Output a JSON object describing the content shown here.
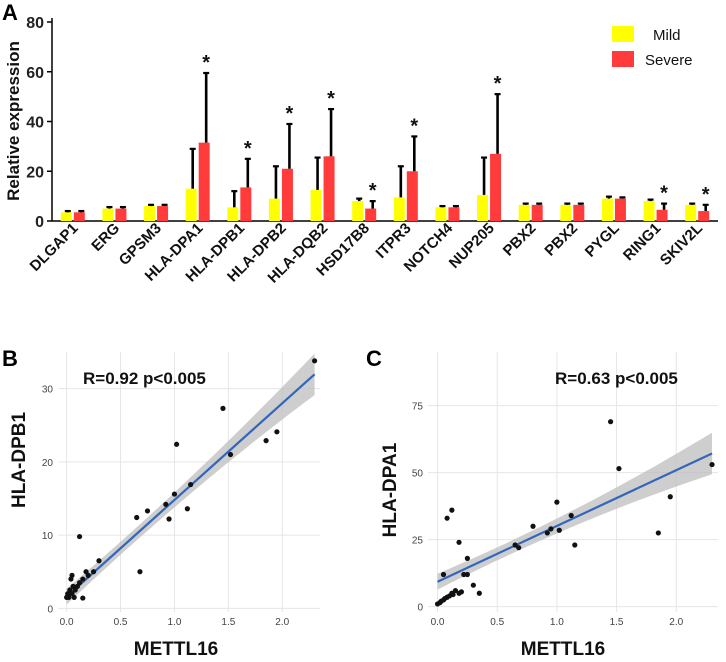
{
  "colors": {
    "mild": "#ffff00",
    "severe": "#ff3b3b",
    "error": "#000000",
    "fit_line": "#3366bb",
    "band": "#bdbdbd",
    "point": "#111111",
    "grid": "#e6e6e6"
  },
  "chart_data": [
    {
      "panel": "A",
      "type": "bar",
      "title": "",
      "ylabel": "Relative expression",
      "xlabel": "",
      "ylim": [
        0,
        80
      ],
      "yticks": [
        0,
        20,
        40,
        60,
        80
      ],
      "legend": {
        "position": "top-right",
        "entries": [
          "Mild",
          "Severe"
        ]
      },
      "categories": [
        "DLGAP1",
        "ERG",
        "GPSM3",
        "HLA-DPA1",
        "HLA-DPB1",
        "HLA-DPB2",
        "HLA-DQB2",
        "HSD17B8",
        "ITPR3",
        "NOTCH4",
        "NUP205",
        "PBX2",
        "PBX2",
        "PYGL",
        "RING1",
        "SKIV2L"
      ],
      "series": [
        {
          "name": "Mild",
          "values": [
            3.5,
            5,
            6,
            13,
            5.5,
            9,
            12.5,
            8,
            9.5,
            5.5,
            10.5,
            6.5,
            6.5,
            9,
            8,
            6.5
          ],
          "errors": [
            0.5,
            0.6,
            0.5,
            16,
            6.5,
            13,
            13,
            1,
            12.5,
            0.5,
            15,
            0.5,
            0.5,
            0.8,
            0.6,
            0.5
          ]
        },
        {
          "name": "Severe",
          "values": [
            3.5,
            5,
            6,
            31.5,
            13.5,
            21,
            26,
            5,
            20,
            5.5,
            27,
            6.5,
            6.5,
            9,
            4.5,
            4
          ],
          "errors": [
            0.5,
            0.6,
            0.5,
            28,
            11.5,
            18,
            19,
            3,
            14,
            0.5,
            24,
            0.5,
            0.5,
            0.5,
            2.5,
            2.5
          ]
        }
      ],
      "significant": [
        false,
        false,
        false,
        true,
        true,
        true,
        true,
        true,
        true,
        false,
        true,
        false,
        false,
        false,
        true,
        true
      ],
      "significance_label": "*"
    },
    {
      "panel": "B",
      "type": "scatter",
      "xlabel": "METTL16",
      "ylabel": "HLA-DPB1",
      "xlim": [
        -0.08,
        2.35
      ],
      "ylim": [
        -0.5,
        35
      ],
      "xticks": [
        0.0,
        0.5,
        1.0,
        1.5,
        2.0
      ],
      "xtick_labels": [
        "0.0",
        "0.5",
        "1.0",
        "1.5",
        "2.0"
      ],
      "yticks": [
        0,
        10,
        20,
        30
      ],
      "yticks_labels": [
        "0",
        "10",
        "20",
        "30"
      ],
      "annotation": "R=0.92 p<0.005",
      "fit": {
        "slope": 13.2,
        "intercept": 1.6,
        "x_range": [
          0.0,
          2.3
        ],
        "band_start": 1.2,
        "band_end": 2.2
      },
      "x": [
        0.0,
        0.01,
        0.02,
        0.03,
        0.04,
        0.05,
        0.06,
        0.07,
        0.08,
        0.1,
        0.12,
        0.15,
        0.18,
        0.2,
        0.25,
        0.3,
        0.12,
        0.15,
        0.05,
        0.65,
        0.68,
        0.75,
        0.92,
        0.95,
        1.0,
        1.02,
        1.12,
        1.15,
        1.45,
        1.52,
        1.85,
        1.95,
        2.3
      ],
      "y": [
        1.5,
        2.0,
        1.5,
        2.5,
        4.0,
        2.0,
        3.0,
        1.5,
        2.5,
        3.0,
        3.5,
        4.0,
        5.0,
        4.5,
        5.0,
        6.5,
        9.8,
        1.4,
        4.5,
        12.4,
        5.0,
        13.3,
        14.2,
        12.2,
        15.6,
        22.4,
        13.6,
        16.9,
        27.3,
        21.0,
        22.9,
        24.1,
        33.8
      ]
    },
    {
      "panel": "C",
      "type": "scatter",
      "xlabel": "METTL16",
      "ylabel": "HLA-DPA1",
      "xlim": [
        -0.08,
        2.35
      ],
      "ylim": [
        -2,
        95
      ],
      "xticks": [
        0.0,
        0.5,
        1.0,
        1.5,
        2.0
      ],
      "xtick_labels": [
        "0.0",
        "0.5",
        "1.0",
        "1.5",
        "2.0"
      ],
      "yticks": [
        0,
        25,
        50,
        75
      ],
      "yticks_labels": [
        "0",
        "25",
        "50",
        "75"
      ],
      "annotation": "R=0.63 p<0.005",
      "fit": {
        "slope": 20.8,
        "intercept": 9.3,
        "x_range": [
          0.0,
          2.3
        ],
        "band_start": 0.5,
        "band_end": 1.6
      },
      "x": [
        0.0,
        0.02,
        0.03,
        0.05,
        0.06,
        0.08,
        0.1,
        0.12,
        0.13,
        0.15,
        0.18,
        0.2,
        0.22,
        0.25,
        0.3,
        0.35,
        0.05,
        0.08,
        0.12,
        0.18,
        0.25,
        0.65,
        0.68,
        0.8,
        0.92,
        0.95,
        1.0,
        1.02,
        1.12,
        1.15,
        1.45,
        1.52,
        1.85,
        1.95,
        2.3
      ],
      "y": [
        1.0,
        1.5,
        2.0,
        2.5,
        3.0,
        3.5,
        4.0,
        5.0,
        4.5,
        6.0,
        5.0,
        5.5,
        12.0,
        18.0,
        8.0,
        5.0,
        12.0,
        33.0,
        36.0,
        24.0,
        12.0,
        23.0,
        22.0,
        30.0,
        27.5,
        29.0,
        39.0,
        28.5,
        34.0,
        23.0,
        69.0,
        51.5,
        27.5,
        41.0,
        53.0
      ]
    }
  ]
}
